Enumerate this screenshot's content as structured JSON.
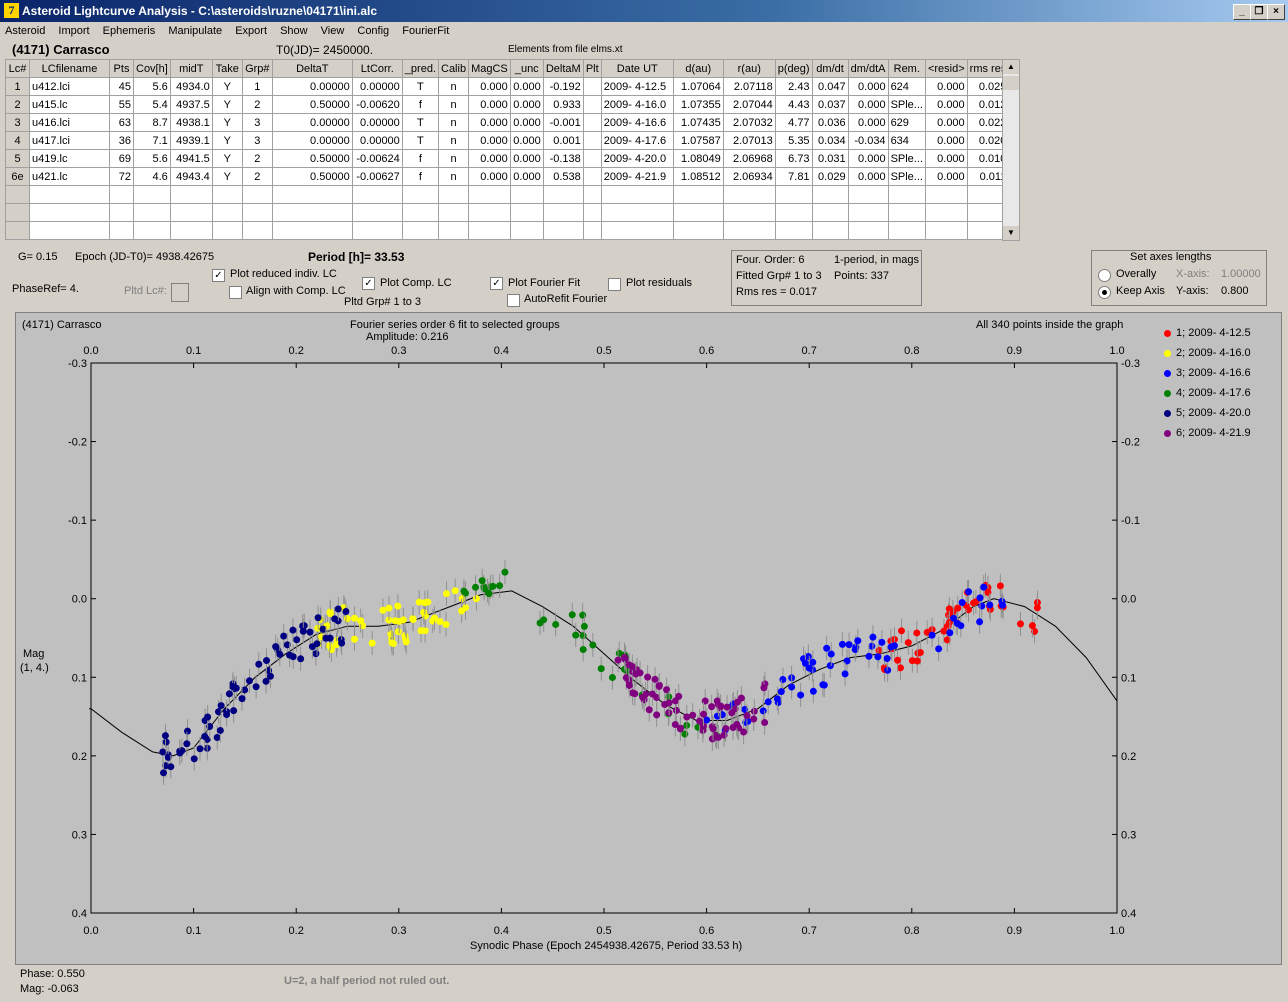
{
  "window": {
    "title": "Asteroid Lightcurve Analysis - C:\\asteroids\\ruzne\\04171\\ini.alc",
    "icon_glyph": "7",
    "minimize": "_",
    "restore": "❐",
    "close": "×"
  },
  "menu": [
    "Asteroid",
    "Import",
    "Ephemeris",
    "Manipulate",
    "Export",
    "Show",
    "View",
    "Config",
    "FourierFit"
  ],
  "header": {
    "asteroid_name": "(4171) Carrasco",
    "t0": "T0(JD)= 2450000.",
    "elements": "Elements from file elms.xt"
  },
  "table": {
    "columns": [
      "Lc#",
      "LCfilename",
      "Pts",
      "Cov[h]",
      "midT",
      "Take",
      "Grp#",
      "DeltaT",
      "LtCorr.",
      "_pred.",
      "Calib",
      "MagCS",
      "_unc",
      "DeltaM",
      "Plt",
      "Date UT",
      "d(au)",
      "r(au)",
      "p(deg)",
      "dm/dt",
      "dm/dtA",
      "Rem.",
      "<resid>",
      "rms res"
    ],
    "rows": [
      [
        "1",
        "u412.lci",
        "45",
        "5.6",
        "4934.0",
        "Y",
        "1",
        "0.00000",
        "0.00000",
        "T",
        "n",
        "0.000",
        "0.000",
        "-0.192",
        "",
        "2009- 4-12.5",
        "1.07064",
        "2.07118",
        "2.43",
        "0.047",
        "0.000",
        "624",
        "0.000",
        "0.025"
      ],
      [
        "2",
        "u415.lc",
        "55",
        "5.4",
        "4937.5",
        "Y",
        "2",
        "0.50000",
        "-0.00620",
        "f",
        "n",
        "0.000",
        "0.000",
        "0.933",
        "",
        "2009- 4-16.0",
        "1.07355",
        "2.07044",
        "4.43",
        "0.037",
        "0.000",
        "SPle...",
        "0.000",
        "0.012"
      ],
      [
        "3",
        "u416.lci",
        "63",
        "8.7",
        "4938.1",
        "Y",
        "3",
        "0.00000",
        "0.00000",
        "T",
        "n",
        "0.000",
        "0.000",
        "-0.001",
        "",
        "2009- 4-16.6",
        "1.07435",
        "2.07032",
        "4.77",
        "0.036",
        "0.000",
        "629",
        "0.000",
        "0.022"
      ],
      [
        "4",
        "u417.lci",
        "36",
        "7.1",
        "4939.1",
        "Y",
        "3",
        "0.00000",
        "0.00000",
        "T",
        "n",
        "0.000",
        "0.000",
        "0.001",
        "",
        "2009- 4-17.6",
        "1.07587",
        "2.07013",
        "5.35",
        "0.034",
        "-0.034",
        "634",
        "0.000",
        "0.020"
      ],
      [
        "5",
        "u419.lc",
        "69",
        "5.6",
        "4941.5",
        "Y",
        "2",
        "0.50000",
        "-0.00624",
        "f",
        "n",
        "0.000",
        "0.000",
        "-0.138",
        "",
        "2009- 4-20.0",
        "1.08049",
        "2.06968",
        "6.73",
        "0.031",
        "0.000",
        "SPle...",
        "0.000",
        "0.010"
      ],
      [
        "6e",
        "u421.lc",
        "72",
        "4.6",
        "4943.4",
        "Y",
        "2",
        "0.50000",
        "-0.00627",
        "f",
        "n",
        "0.000",
        "0.000",
        "0.538",
        "",
        "2009- 4-21.9",
        "1.08512",
        "2.06934",
        "7.81",
        "0.029",
        "0.000",
        "SPle...",
        "0.000",
        "0.011"
      ]
    ],
    "empty_rows": 3
  },
  "info": {
    "g": "G= 0.15",
    "epoch": "Epoch (JD-T0)= 4938.42675",
    "period": "Period [h]= 33.53",
    "phaseref": "PhaseRef= 4.",
    "pltd_lc": "Pltd Lc#:",
    "pltd_grp": "Pltd Grp#  1   to   3"
  },
  "checkboxes": {
    "plot_reduced": {
      "label": "Plot reduced indiv. LC",
      "checked": true
    },
    "align_comp": {
      "label": "Align with Comp. LC",
      "checked": false
    },
    "plot_comp": {
      "label": "Plot Comp. LC",
      "checked": true
    },
    "plot_fourier": {
      "label": "Plot Fourier Fit",
      "checked": true
    },
    "autorefit": {
      "label": "AutoRefit Fourier",
      "checked": false
    },
    "plot_residuals": {
      "label": "Plot residuals",
      "checked": false
    }
  },
  "fourier_box": {
    "order": "Four. Order:  6",
    "mode": "1-period, in mags",
    "fitted": "Fitted Grp# 1 to 3",
    "points": "Points: 337",
    "rms": "Rms res     = 0.017"
  },
  "axes_box": {
    "title": "Set axes lengths",
    "overally": "Overally",
    "keep_axis": "Keep Axis",
    "xaxis_label": "X-axis:",
    "xaxis_value": "1.00000",
    "yaxis_label": "Y-axis:",
    "yaxis_value": "0.800",
    "selected": "keep_axis"
  },
  "plot": {
    "object": "(4171) Carrasco",
    "subtitle1": "Fourier series order 6 fit to selected groups",
    "subtitle2": "Amplitude: 0.216",
    "points_note": "All 340 points inside the graph",
    "ylabel_line1": "Mag",
    "ylabel_line2": "(1, 4.)"
  },
  "status": {
    "phase": "Phase:  0.550",
    "mag": "Mag:   -0.063",
    "note": "U=2, a half period not ruled out."
  },
  "chart_data": {
    "type": "scatter",
    "xlabel": "Synodic Phase (Epoch 2454938.42675, Period 33.53 h)",
    "ylabel": "Mag (1, 4.)",
    "xlim": [
      0.0,
      1.0
    ],
    "ylim": [
      -0.3,
      0.4
    ],
    "y_inverted": true,
    "x_ticks": [
      0.0,
      0.1,
      0.2,
      0.3,
      0.4,
      0.5,
      0.6,
      0.7,
      0.8,
      0.9,
      1.0
    ],
    "y_ticks": [
      -0.3,
      -0.2,
      -0.1,
      0.0,
      0.1,
      0.2,
      0.3,
      0.4
    ],
    "fourier_curve": [
      [
        -0.05,
        0.14
      ],
      [
        0.0,
        0.14
      ],
      [
        0.03,
        0.17
      ],
      [
        0.06,
        0.195
      ],
      [
        0.08,
        0.2
      ],
      [
        0.1,
        0.19
      ],
      [
        0.13,
        0.14
      ],
      [
        0.16,
        0.1
      ],
      [
        0.19,
        0.07
      ],
      [
        0.22,
        0.045
      ],
      [
        0.25,
        0.035
      ],
      [
        0.28,
        0.035
      ],
      [
        0.31,
        0.03
      ],
      [
        0.35,
        0.01
      ],
      [
        0.38,
        -0.005
      ],
      [
        0.41,
        -0.01
      ],
      [
        0.44,
        0.01
      ],
      [
        0.47,
        0.035
      ],
      [
        0.5,
        0.07
      ],
      [
        0.53,
        0.105
      ],
      [
        0.56,
        0.135
      ],
      [
        0.59,
        0.155
      ],
      [
        0.62,
        0.155
      ],
      [
        0.65,
        0.14
      ],
      [
        0.68,
        0.11
      ],
      [
        0.71,
        0.09
      ],
      [
        0.74,
        0.075
      ],
      [
        0.77,
        0.07
      ],
      [
        0.8,
        0.06
      ],
      [
        0.83,
        0.04
      ],
      [
        0.86,
        0.01
      ],
      [
        0.88,
        0.0
      ],
      [
        0.91,
        0.01
      ],
      [
        0.94,
        0.035
      ],
      [
        0.97,
        0.075
      ],
      [
        1.0,
        0.13
      ]
    ],
    "series": [
      {
        "name": "1; 2009- 4-12.5",
        "color": "#ff0000",
        "phase_range": [
          0.76,
          0.93
        ],
        "points": 45
      },
      {
        "name": "2; 2009- 4-16.0",
        "color": "#ffff00",
        "phase_range": [
          0.22,
          0.38
        ],
        "points": 55
      },
      {
        "name": "3; 2009- 4-16.6",
        "color": "#0000ff",
        "phase_range": [
          0.6,
          0.9
        ],
        "points": 63
      },
      {
        "name": "4; 2009- 4-17.6",
        "color": "#008000",
        "phase_range": [
          0.36,
          0.62
        ],
        "points": 36
      },
      {
        "name": "5; 2009- 4-20.0",
        "color": "#000080",
        "phase_range": [
          0.07,
          0.25
        ],
        "points": 69
      },
      {
        "name": "6; 2009- 4-21.9",
        "color": "#800080",
        "phase_range": [
          0.51,
          0.66
        ],
        "points": 72
      }
    ]
  }
}
